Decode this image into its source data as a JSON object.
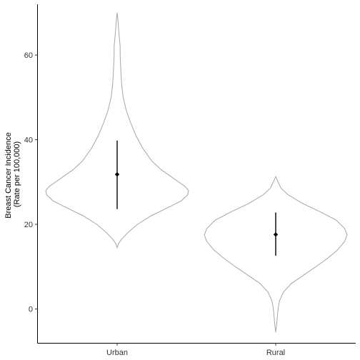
{
  "chart_data": {
    "type": "violin",
    "title": "",
    "xlabel": "",
    "ylabel_lines": [
      "Breast Cancer Incidence",
      "(Rate per 100,000)"
    ],
    "ylim": [
      -8,
      72
    ],
    "yticks": [
      0,
      20,
      40,
      60
    ],
    "grid": false,
    "legend": "none",
    "violin_outline_color": "#a6a6a6",
    "point_color": "#000000",
    "categories": [
      "Urban",
      "Rural"
    ],
    "groups": [
      {
        "category": "Urban",
        "mean": 31.8,
        "error_low": 23.6,
        "error_high": 39.8,
        "density": [
          [
            14.5,
            0.0
          ],
          [
            15.5,
            0.02
          ],
          [
            16.5,
            0.06
          ],
          [
            18,
            0.14
          ],
          [
            20,
            0.27
          ],
          [
            22,
            0.45
          ],
          [
            24,
            0.68
          ],
          [
            25.5,
            0.85
          ],
          [
            27,
            0.94
          ],
          [
            28,
            0.95
          ],
          [
            29,
            0.9
          ],
          [
            31,
            0.74
          ],
          [
            33,
            0.58
          ],
          [
            35,
            0.46
          ],
          [
            38,
            0.34
          ],
          [
            41,
            0.25
          ],
          [
            44,
            0.18
          ],
          [
            47,
            0.12
          ],
          [
            50,
            0.08
          ],
          [
            53,
            0.06
          ],
          [
            56,
            0.05
          ],
          [
            58,
            0.045
          ],
          [
            60,
            0.04
          ],
          [
            62,
            0.04
          ],
          [
            64,
            0.03
          ],
          [
            66,
            0.02
          ],
          [
            68,
            0.012
          ],
          [
            70,
            0.0
          ]
        ]
      },
      {
        "category": "Rural",
        "mean": 17.6,
        "error_low": 12.6,
        "error_high": 22.8,
        "density": [
          [
            -5.5,
            0.0
          ],
          [
            -4,
            0.01
          ],
          [
            -2,
            0.02
          ],
          [
            0,
            0.03
          ],
          [
            2,
            0.05
          ],
          [
            4,
            0.1
          ],
          [
            6,
            0.2
          ],
          [
            8,
            0.36
          ],
          [
            10,
            0.52
          ],
          [
            12,
            0.67
          ],
          [
            14,
            0.8
          ],
          [
            16,
            0.89
          ],
          [
            17.5,
            0.92
          ],
          [
            19,
            0.89
          ],
          [
            21,
            0.78
          ],
          [
            23,
            0.57
          ],
          [
            25,
            0.34
          ],
          [
            27,
            0.16
          ],
          [
            28.5,
            0.07
          ],
          [
            30,
            0.03
          ],
          [
            31.3,
            0.0
          ]
        ]
      }
    ]
  }
}
